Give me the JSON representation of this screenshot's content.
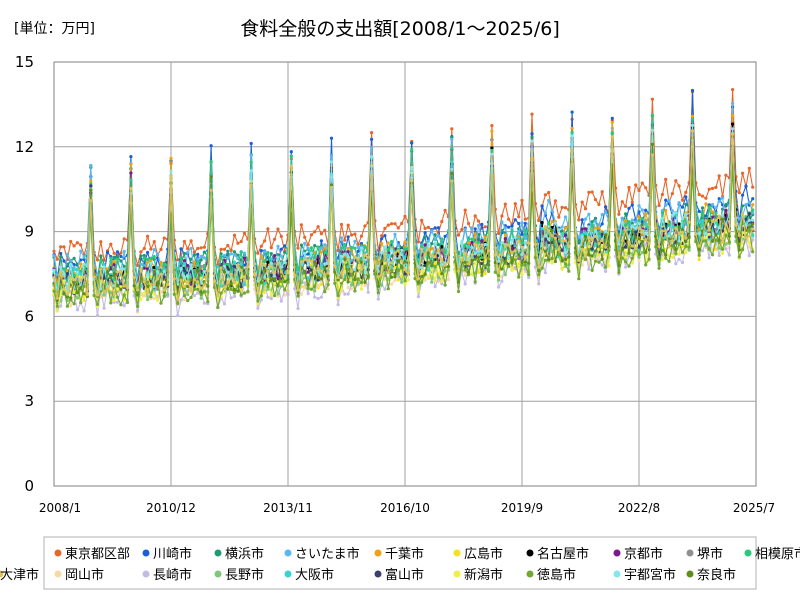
{
  "chart_data": {
    "type": "line",
    "title": "食料全般の支出額[2008/1～2025/6]",
    "unit_label": "[単位：万円]",
    "xlabel": "",
    "ylabel": "",
    "x_start": "2008/1",
    "x_end": "2025/7",
    "ylim": [
      0,
      15
    ],
    "yticks": [
      "0",
      "3",
      "6",
      "9",
      "12",
      "15"
    ],
    "xticks": [
      {
        "label": "2008/1",
        "month_index": 0
      },
      {
        "label": "2010/12",
        "month_index": 35
      },
      {
        "label": "2013/11",
        "month_index": 70
      },
      {
        "label": "2016/10",
        "month_index": 105
      },
      {
        "label": "2019/9",
        "month_index": 140
      },
      {
        "label": "2022/8",
        "month_index": 175
      },
      {
        "label": "2025/7",
        "month_index": 210
      }
    ],
    "grid": true,
    "legend_position": "bottom",
    "series": [
      {
        "name": "東京都区部",
        "color": "#e8662a",
        "base": 8.3,
        "end": 10.9,
        "amp": 0.45,
        "peak": 11.0
      },
      {
        "name": "川崎市",
        "color": "#1a5fd6",
        "base": 7.8,
        "end": 10.2,
        "amp": 0.45,
        "peak": 11.2
      },
      {
        "name": "横浜市",
        "color": "#1e9b72",
        "base": 7.7,
        "end": 9.8,
        "amp": 0.45,
        "peak": 10.8
      },
      {
        "name": "さいたま市",
        "color": "#5ab8ee",
        "base": 7.8,
        "end": 10.0,
        "amp": 0.5,
        "peak": 11.0
      },
      {
        "name": "千葉市",
        "color": "#f0a20f",
        "base": 7.5,
        "end": 9.7,
        "amp": 0.45,
        "peak": 10.8
      },
      {
        "name": "広島市",
        "color": "#f5e21c",
        "base": 7.0,
        "end": 9.0,
        "amp": 0.45,
        "peak": 10.0
      },
      {
        "name": "名古屋市",
        "color": "#000000",
        "base": 7.3,
        "end": 9.4,
        "amp": 0.4,
        "peak": 10.2
      },
      {
        "name": "京都市",
        "color": "#7a1a8c",
        "base": 7.4,
        "end": 9.4,
        "amp": 0.45,
        "peak": 10.4
      },
      {
        "name": "堺市",
        "color": "#8f8f8f",
        "base": 7.2,
        "end": 9.2,
        "amp": 0.45,
        "peak": 10.0
      },
      {
        "name": "相模原市",
        "color": "#27c97a",
        "base": 7.6,
        "end": 9.6,
        "amp": 0.45,
        "peak": 10.8
      },
      {
        "name": "岡山市",
        "color": "#f7d9a8",
        "base": 6.8,
        "end": 8.9,
        "amp": 0.45,
        "peak": 9.8
      },
      {
        "name": "長崎市",
        "color": "#c3bbe6",
        "base": 6.6,
        "end": 8.7,
        "amp": 0.45,
        "peak": 9.6
      },
      {
        "name": "長野市",
        "color": "#7fc77a",
        "base": 6.9,
        "end": 8.9,
        "amp": 0.45,
        "peak": 9.8
      },
      {
        "name": "大阪市",
        "color": "#34d6cc",
        "base": 7.3,
        "end": 9.3,
        "amp": 0.45,
        "peak": 10.2
      },
      {
        "name": "富山市",
        "color": "#3b3f6e",
        "base": 7.2,
        "end": 9.2,
        "amp": 0.4,
        "peak": 10.0
      },
      {
        "name": "新潟市",
        "color": "#eef04a",
        "base": 6.9,
        "end": 8.8,
        "amp": 0.45,
        "peak": 9.8
      },
      {
        "name": "徳島市",
        "color": "#6fa832",
        "base": 6.8,
        "end": 8.7,
        "amp": 0.45,
        "peak": 9.6
      },
      {
        "name": "宇都宮市",
        "color": "#86e6ec",
        "base": 7.4,
        "end": 9.5,
        "amp": 0.45,
        "peak": 10.4
      },
      {
        "name": "奈良市",
        "color": "#5d8f1c",
        "base": 7.1,
        "end": 9.1,
        "amp": 0.45,
        "peak": 10.0
      },
      {
        "name": "大津市",
        "color": "#dcc35e",
        "base": 7.2,
        "end": 9.3,
        "amp": 0.45,
        "peak": 10.2
      }
    ]
  }
}
